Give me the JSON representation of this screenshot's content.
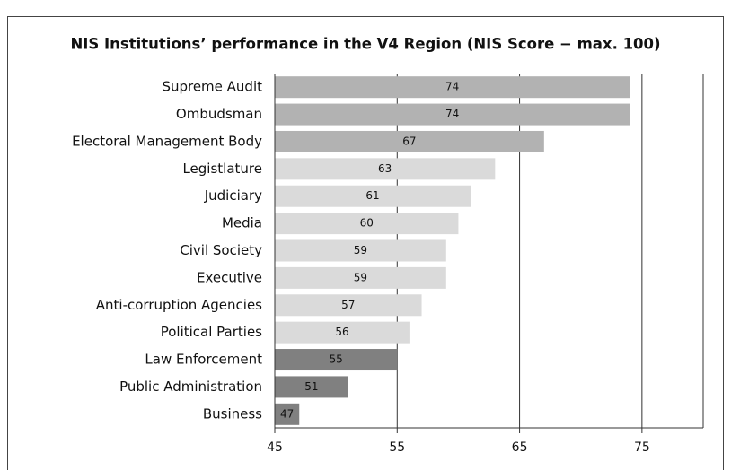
{
  "chart_data": {
    "type": "barh",
    "title": "NIS Institutions’ performance in the V4 Region (NIS Score − max. 100)",
    "categories": [
      "Supreme Audit",
      "Ombudsman",
      "Electoral Management Body",
      "Legistlature",
      "Judiciary",
      "Media",
      "Civil Society",
      "Executive",
      "Anti-corruption Agencies",
      "Political Parties",
      "Law Enforcement",
      "Public Administration",
      "Business"
    ],
    "values": [
      74,
      74,
      67,
      63,
      61,
      60,
      59,
      59,
      57,
      56,
      55,
      51,
      47
    ],
    "colors": [
      "#b2b2b2",
      "#b2b2b2",
      "#b2b2b2",
      "#dadada",
      "#dadada",
      "#dadada",
      "#dadada",
      "#dadada",
      "#dadada",
      "#dadada",
      "#808080",
      "#808080",
      "#808080"
    ],
    "xlim": [
      45,
      80
    ],
    "xticks": [
      45,
      55,
      65,
      75
    ],
    "grid": true
  }
}
